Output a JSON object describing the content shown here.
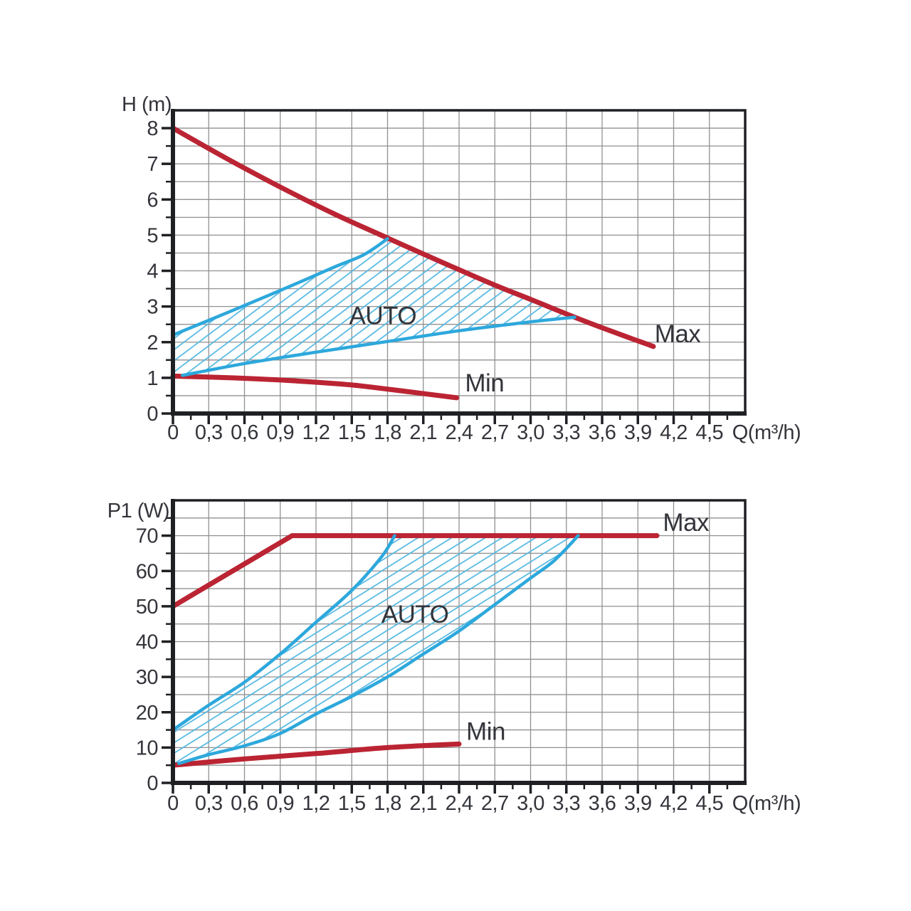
{
  "page": {
    "description": "Pump performance curves"
  },
  "colors": {
    "background": "#ffffff",
    "red": "#bb2433",
    "blue": "#2da8dc",
    "hatch_blue": "#54b8e2",
    "grid": "#919191",
    "axis": "#1f2023",
    "text": "#34353b"
  },
  "chart_data": [
    {
      "type": "line",
      "name": "head-chart",
      "title": "",
      "ylabel": "H (m)",
      "xlabel": "Q(m³/h)",
      "xlim": [
        0,
        4.8
      ],
      "ylim": [
        0,
        8.5
      ],
      "x_grid_step": 0.3,
      "x_minor_step": 0.15,
      "y_grid_step": 0.5,
      "y_minor_step": 0.5,
      "grid": true,
      "hatch_angle": -37,
      "x_ticks": [
        {
          "v": 0.0,
          "l": "0"
        },
        {
          "v": 0.3,
          "l": "0,3"
        },
        {
          "v": 0.6,
          "l": "0,6"
        },
        {
          "v": 0.9,
          "l": "0,9"
        },
        {
          "v": 1.2,
          "l": "1,2"
        },
        {
          "v": 1.5,
          "l": "1,5"
        },
        {
          "v": 1.8,
          "l": "1,8"
        },
        {
          "v": 2.1,
          "l": "2,1"
        },
        {
          "v": 2.4,
          "l": "2,4"
        },
        {
          "v": 2.7,
          "l": "2,7"
        },
        {
          "v": 3.0,
          "l": "3,0"
        },
        {
          "v": 3.3,
          "l": "3,3"
        },
        {
          "v": 3.6,
          "l": "3,6"
        },
        {
          "v": 3.9,
          "l": "3,9"
        },
        {
          "v": 4.2,
          "l": "4,2"
        },
        {
          "v": 4.5,
          "l": "4,5"
        }
      ],
      "y_ticks": [
        {
          "v": 0,
          "l": "0"
        },
        {
          "v": 1,
          "l": "1"
        },
        {
          "v": 2,
          "l": "2"
        },
        {
          "v": 3,
          "l": "3"
        },
        {
          "v": 4,
          "l": "4"
        },
        {
          "v": 5,
          "l": "5"
        },
        {
          "v": 6,
          "l": "6"
        },
        {
          "v": 7,
          "l": "7"
        },
        {
          "v": 8,
          "l": "8"
        }
      ],
      "series": [
        {
          "name": "max",
          "label": "Max",
          "color": "red",
          "width": 7,
          "smooth": true,
          "points": [
            [
              0,
              8.0
            ],
            [
              0.45,
              7.15
            ],
            [
              0.9,
              6.35
            ],
            [
              1.35,
              5.6
            ],
            [
              1.8,
              4.92
            ],
            [
              2.25,
              4.25
            ],
            [
              2.7,
              3.6
            ],
            [
              3.0,
              3.2
            ],
            [
              3.37,
              2.7
            ],
            [
              3.7,
              2.28
            ],
            [
              4.03,
              1.88
            ]
          ]
        },
        {
          "name": "min",
          "label": "Min",
          "color": "red",
          "width": 7,
          "smooth": true,
          "points": [
            [
              0,
              1.05
            ],
            [
              0.5,
              1.0
            ],
            [
              1.0,
              0.92
            ],
            [
              1.5,
              0.8
            ],
            [
              2.0,
              0.6
            ],
            [
              2.38,
              0.44
            ]
          ]
        },
        {
          "name": "auto-upper",
          "label": "AUTO upper limit",
          "color": "blue",
          "width": 4.5,
          "smooth": true,
          "points": [
            [
              0,
              2.2
            ],
            [
              0.45,
              2.82
            ],
            [
              0.9,
              3.45
            ],
            [
              1.35,
              4.1
            ],
            [
              1.6,
              4.45
            ],
            [
              1.8,
              4.9
            ]
          ]
        },
        {
          "name": "auto-lower",
          "label": "AUTO lower limit",
          "color": "blue",
          "width": 4.5,
          "smooth": true,
          "points": [
            [
              0.08,
              1.07
            ],
            [
              0.6,
              1.4
            ],
            [
              1.2,
              1.72
            ],
            [
              1.8,
              2.02
            ],
            [
              2.4,
              2.32
            ],
            [
              3.0,
              2.57
            ],
            [
              3.37,
              2.7
            ]
          ]
        }
      ],
      "hatch_region": [
        [
          0,
          2.2
        ],
        [
          0.45,
          2.82
        ],
        [
          0.9,
          3.45
        ],
        [
          1.35,
          4.1
        ],
        [
          1.6,
          4.45
        ],
        [
          1.8,
          4.9
        ],
        [
          2.25,
          4.25
        ],
        [
          2.7,
          3.6
        ],
        [
          3.0,
          3.2
        ],
        [
          3.37,
          2.7
        ],
        [
          3.0,
          2.57
        ],
        [
          2.4,
          2.32
        ],
        [
          1.8,
          2.02
        ],
        [
          1.2,
          1.72
        ],
        [
          0.6,
          1.4
        ],
        [
          0.08,
          1.07
        ],
        [
          0,
          1.05
        ]
      ],
      "annotations": [
        {
          "text": "AUTO",
          "x": 1.76,
          "y": 2.5,
          "anchor": "middle",
          "size": 35
        },
        {
          "text": "Max",
          "x": 4.04,
          "y": 2.0,
          "anchor": "start",
          "size": 35
        },
        {
          "text": "Min",
          "x": 2.45,
          "y": 0.62,
          "anchor": "start",
          "size": 35
        }
      ]
    },
    {
      "type": "line",
      "name": "power-chart",
      "title": "",
      "ylabel": "P1 (W)",
      "xlabel": "Q(m³/h)",
      "xlim": [
        0,
        4.8
      ],
      "ylim": [
        0,
        80
      ],
      "x_grid_step": 0.3,
      "x_minor_step": 0.15,
      "y_grid_step": 5,
      "y_minor_step": 5,
      "grid": true,
      "hatch_angle": -32,
      "x_ticks": [
        {
          "v": 0.0,
          "l": "0"
        },
        {
          "v": 0.3,
          "l": "0,3"
        },
        {
          "v": 0.6,
          "l": "0,6"
        },
        {
          "v": 0.9,
          "l": "0,9"
        },
        {
          "v": 1.2,
          "l": "1,2"
        },
        {
          "v": 1.5,
          "l": "1,5"
        },
        {
          "v": 1.8,
          "l": "1,8"
        },
        {
          "v": 2.1,
          "l": "2,1"
        },
        {
          "v": 2.4,
          "l": "2,4"
        },
        {
          "v": 2.7,
          "l": "2,7"
        },
        {
          "v": 3.0,
          "l": "3,0"
        },
        {
          "v": 3.3,
          "l": "3,3"
        },
        {
          "v": 3.6,
          "l": "3,6"
        },
        {
          "v": 3.9,
          "l": "3,9"
        },
        {
          "v": 4.2,
          "l": "4,2"
        },
        {
          "v": 4.5,
          "l": "4,5"
        }
      ],
      "y_ticks": [
        {
          "v": 0,
          "l": "0"
        },
        {
          "v": 10,
          "l": "10"
        },
        {
          "v": 20,
          "l": "20"
        },
        {
          "v": 30,
          "l": "30"
        },
        {
          "v": 40,
          "l": "40"
        },
        {
          "v": 50,
          "l": "50"
        },
        {
          "v": 60,
          "l": "60"
        },
        {
          "v": 70,
          "l": "70"
        }
      ],
      "series": [
        {
          "name": "max",
          "label": "Max",
          "color": "red",
          "width": 7,
          "smooth": false,
          "points": [
            [
              0,
              50
            ],
            [
              1.0,
              70
            ],
            [
              4.06,
              70
            ]
          ]
        },
        {
          "name": "min",
          "label": "Min",
          "color": "red",
          "width": 7,
          "smooth": true,
          "points": [
            [
              0,
              5
            ],
            [
              0.6,
              6.8
            ],
            [
              1.2,
              8.3
            ],
            [
              1.8,
              10
            ],
            [
              2.4,
              11
            ]
          ]
        },
        {
          "name": "auto-upper",
          "label": "AUTO upper limit",
          "color": "blue",
          "width": 4.5,
          "smooth": true,
          "points": [
            [
              0,
              15
            ],
            [
              0.3,
              22
            ],
            [
              0.6,
              28.5
            ],
            [
              0.9,
              36.5
            ],
            [
              1.2,
              45.5
            ],
            [
              1.5,
              54.5
            ],
            [
              1.75,
              64
            ],
            [
              1.86,
              70
            ]
          ]
        },
        {
          "name": "auto-lower",
          "label": "AUTO lower limit",
          "color": "blue",
          "width": 4.5,
          "smooth": true,
          "points": [
            [
              0.05,
              5.5
            ],
            [
              0.3,
              8
            ],
            [
              0.6,
              10.5
            ],
            [
              0.9,
              14
            ],
            [
              1.2,
              19.5
            ],
            [
              1.5,
              24.5
            ],
            [
              1.8,
              30
            ],
            [
              2.1,
              36.5
            ],
            [
              2.4,
              43
            ],
            [
              2.7,
              50.5
            ],
            [
              3.0,
              58
            ],
            [
              3.2,
              63
            ],
            [
              3.4,
              70
            ]
          ]
        }
      ],
      "hatch_region": [
        [
          0,
          15
        ],
        [
          0.3,
          22
        ],
        [
          0.6,
          28.5
        ],
        [
          0.9,
          36.5
        ],
        [
          1.2,
          45.5
        ],
        [
          1.5,
          54.5
        ],
        [
          1.75,
          64
        ],
        [
          1.86,
          70
        ],
        [
          3.4,
          70
        ],
        [
          3.2,
          63
        ],
        [
          3.0,
          58
        ],
        [
          2.7,
          50.5
        ],
        [
          2.4,
          43
        ],
        [
          2.1,
          36.5
        ],
        [
          1.8,
          30
        ],
        [
          1.5,
          24.5
        ],
        [
          1.2,
          19.5
        ],
        [
          0.9,
          14
        ],
        [
          0.6,
          10.5
        ],
        [
          0.3,
          8
        ],
        [
          0.05,
          5.5
        ],
        [
          0,
          5.3
        ]
      ],
      "annotations": [
        {
          "text": "AUTO",
          "x": 2.03,
          "y": 45.3,
          "anchor": "middle",
          "size": 35
        },
        {
          "text": "Max",
          "x": 4.11,
          "y": 71.3,
          "anchor": "start",
          "size": 35
        },
        {
          "text": "Min",
          "x": 2.46,
          "y": 12.2,
          "anchor": "start",
          "size": 35
        }
      ]
    }
  ]
}
